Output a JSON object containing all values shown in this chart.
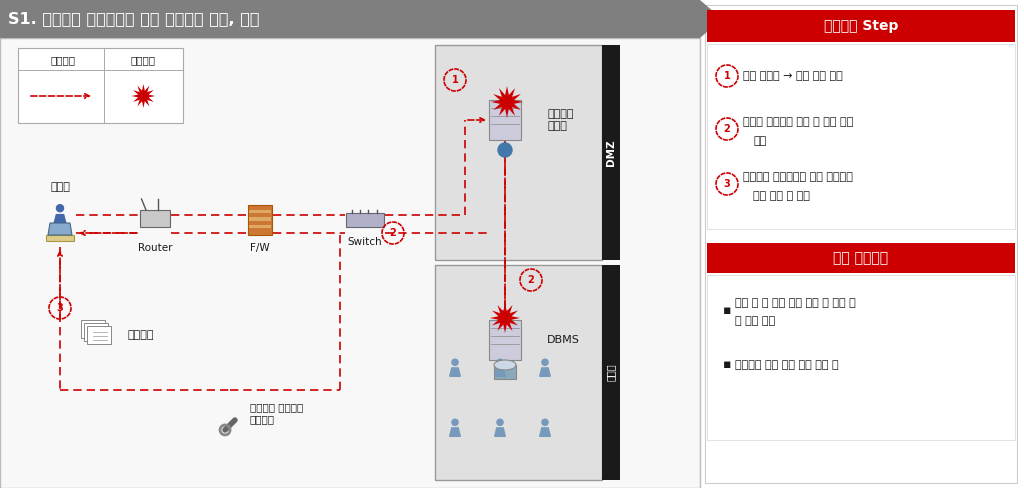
{
  "title": "S1. 정보수집 프로그램을 통한 개인정보 수집, 유출",
  "title_bg": "#7f7f7f",
  "title_text_color": "#ffffff",
  "bg_color": "#ffffff",
  "legend_attack": "공격경로",
  "legend_damage": "침해영역",
  "dmz_label": "DMZ",
  "intranet_label": "내부망",
  "attacker_label": "공격자",
  "router_label": "Router",
  "fw_label": "F/W",
  "switch_label": "Switch",
  "customer_label": "고객관리\n시스템",
  "dbms_label": "DBMS",
  "personal_label": "개인정보",
  "auto_label": "자동화된 정보수집\n프로그램",
  "scenario_title": "시나리오 Step",
  "step1": "정상 로그인 → 본인 정보 열람",
  "step2a": "서비스 취약점을 통해 타 고객 정보",
  "step2b": "수집",
  "step3a": "자동화된 프로그램을 통한 고객정보",
  "step3b": "대량 수집 및 유출",
  "check_title": "예상 점검내역",
  "check1a": "본인 외 타 고객 정보 열람 및 임의 수",
  "check1b": "정 가능 여부",
  "check2": "고객정보 과다 조회 가능 여부 등",
  "red": "#cc0000",
  "gray_bg": "#e8e8e8",
  "dark": "#1a1a1a",
  "panel_border": "#cccccc"
}
